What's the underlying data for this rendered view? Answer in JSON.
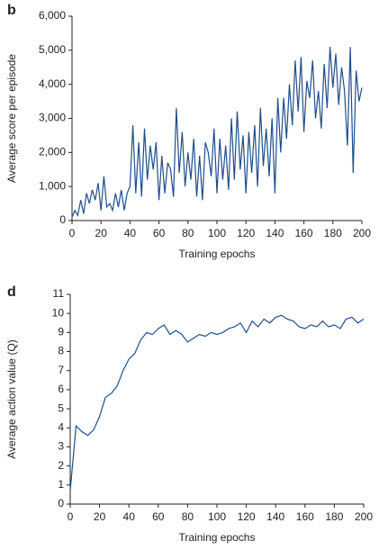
{
  "chart_data": [
    {
      "type": "line",
      "panel_label": "b",
      "x_label": "Training epochs",
      "y_label": "Average score per episode",
      "xlim": [
        0,
        200
      ],
      "xticks": [
        0,
        20,
        40,
        60,
        80,
        100,
        120,
        140,
        160,
        180,
        200
      ],
      "ylim": [
        0,
        6000
      ],
      "yticks": [
        0,
        {
          "value": 1000,
          "label": "1,000"
        },
        {
          "value": 2000,
          "label": "2,000"
        },
        {
          "value": 3000,
          "label": "3,000"
        },
        {
          "value": 4000,
          "label": "4,000"
        },
        {
          "value": 5000,
          "label": "5,000"
        },
        {
          "value": 6000,
          "label": "6,000"
        }
      ],
      "series": [
        {
          "color": "#1f4e8c",
          "x": [
            0,
            2,
            4,
            6,
            8,
            10,
            12,
            14,
            16,
            18,
            20,
            22,
            24,
            26,
            28,
            30,
            32,
            34,
            36,
            38,
            40,
            42,
            44,
            46,
            48,
            50,
            52,
            54,
            56,
            58,
            60,
            62,
            64,
            66,
            68,
            70,
            72,
            74,
            76,
            78,
            80,
            82,
            84,
            86,
            88,
            90,
            92,
            94,
            96,
            98,
            100,
            102,
            104,
            106,
            108,
            110,
            112,
            114,
            116,
            118,
            120,
            122,
            124,
            126,
            128,
            130,
            132,
            134,
            136,
            138,
            140,
            142,
            144,
            146,
            148,
            150,
            152,
            154,
            156,
            158,
            160,
            162,
            164,
            166,
            168,
            170,
            172,
            174,
            176,
            178,
            180,
            182,
            184,
            186,
            188,
            190,
            192,
            194,
            196,
            198,
            200
          ],
          "values": [
            100,
            300,
            150,
            600,
            200,
            800,
            500,
            900,
            600,
            1100,
            300,
            1300,
            400,
            500,
            300,
            800,
            400,
            900,
            300,
            800,
            1000,
            2800,
            800,
            2300,
            700,
            2700,
            1200,
            2200,
            1500,
            2300,
            600,
            1900,
            800,
            1700,
            1500,
            700,
            3300,
            1400,
            2600,
            1000,
            2000,
            1200,
            2400,
            700,
            1900,
            600,
            2300,
            2000,
            1300,
            2700,
            800,
            2400,
            1200,
            2200,
            900,
            3000,
            1200,
            3200,
            1500,
            2500,
            800,
            2600,
            1400,
            2800,
            1000,
            3300,
            1600,
            2700,
            1300,
            3000,
            800,
            3600,
            2000,
            3600,
            2400,
            4000,
            2800,
            4700,
            3200,
            4800,
            2600,
            4100,
            3600,
            4700,
            3000,
            3800,
            2700,
            4600,
            3300,
            5100,
            3900,
            4900,
            3400,
            4500,
            3800,
            2200,
            5100,
            1400,
            4400,
            3500,
            3900
          ]
        }
      ]
    },
    {
      "type": "line",
      "panel_label": "d",
      "x_label": "Training epochs",
      "y_label": "Average action value (Q)",
      "xlim": [
        0,
        200
      ],
      "xticks": [
        0,
        20,
        40,
        60,
        80,
        100,
        120,
        140,
        160,
        180,
        200
      ],
      "ylim": [
        0,
        11
      ],
      "yticks": [
        0,
        1,
        2,
        3,
        4,
        5,
        6,
        7,
        8,
        9,
        10,
        11
      ],
      "series": [
        {
          "color": "#1f4e8c",
          "x": [
            0,
            4,
            8,
            12,
            16,
            20,
            24,
            28,
            32,
            36,
            40,
            44,
            48,
            52,
            56,
            60,
            64,
            68,
            72,
            76,
            80,
            84,
            88,
            92,
            96,
            100,
            104,
            108,
            112,
            116,
            120,
            124,
            128,
            132,
            136,
            140,
            144,
            148,
            152,
            156,
            160,
            164,
            168,
            172,
            176,
            180,
            184,
            188,
            192,
            196,
            200
          ],
          "values": [
            0.7,
            4.1,
            3.8,
            3.6,
            3.9,
            4.6,
            5.6,
            5.8,
            6.2,
            7.0,
            7.6,
            7.9,
            8.6,
            9.0,
            8.9,
            9.2,
            9.4,
            8.9,
            9.1,
            8.9,
            8.5,
            8.7,
            8.9,
            8.8,
            9.0,
            8.9,
            9.0,
            9.2,
            9.3,
            9.5,
            9.0,
            9.6,
            9.3,
            9.7,
            9.5,
            9.8,
            9.9,
            9.7,
            9.6,
            9.3,
            9.2,
            9.4,
            9.3,
            9.6,
            9.3,
            9.4,
            9.2,
            9.7,
            9.8,
            9.5,
            9.7
          ]
        }
      ]
    }
  ]
}
